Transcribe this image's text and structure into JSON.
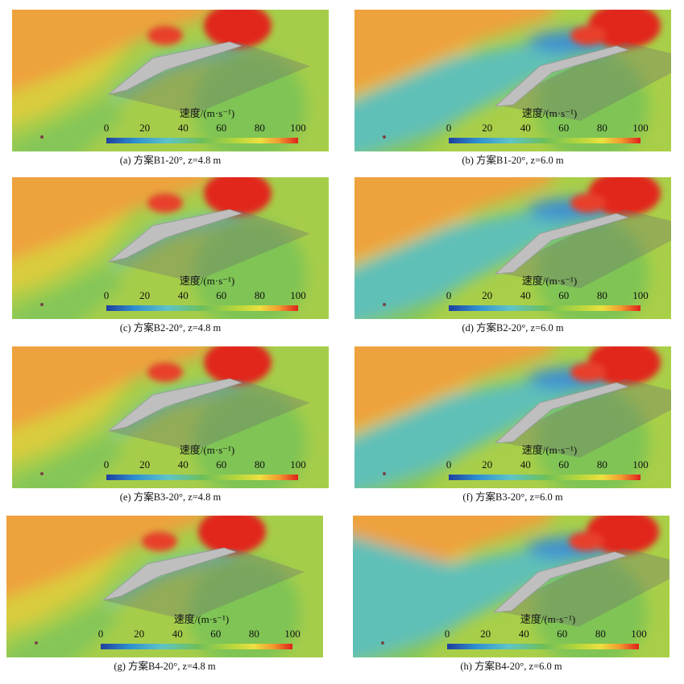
{
  "panels": [
    {
      "caption": "(a) 方案B1-20°, z=4.8 m",
      "legend_title": "速度/(m·s⁻¹)",
      "legend_ticks": [
        0,
        20,
        40,
        60,
        80,
        100
      ]
    },
    {
      "caption": "(b) 方案B1-20°, z=6.0 m",
      "legend_title": "速度/(m·s⁻¹)",
      "legend_ticks": [
        0,
        20,
        40,
        60,
        80,
        100
      ]
    },
    {
      "caption": "(c) 方案B2-20°, z=4.8 m",
      "legend_title": "速度/(m·s⁻¹)",
      "legend_ticks": [
        0,
        20,
        40,
        60,
        80,
        100
      ]
    },
    {
      "caption": "(d) 方案B2-20°, z=6.0 m",
      "legend_title": "速度/(m·s⁻¹)",
      "legend_ticks": [
        0,
        20,
        40,
        60,
        80,
        100
      ]
    },
    {
      "caption": "(e) 方案B3-20°, z=4.8 m",
      "legend_title": "速度/(m·s⁻¹)",
      "legend_ticks": [
        0,
        20,
        40,
        60,
        80,
        100
      ]
    },
    {
      "caption": "(f) 方案B3-20°, z=6.0 m",
      "legend_title": "速度/(m·s⁻¹)",
      "legend_ticks": [
        0,
        20,
        40,
        60,
        80,
        100
      ]
    },
    {
      "caption": "(g) 方案B4-20°, z=4.8 m",
      "legend_title": "速度/(m·s⁻¹)",
      "legend_ticks": [
        0,
        20,
        40,
        60,
        80,
        100
      ]
    },
    {
      "caption": "(h) 方案B4-20°, z=6.0 m",
      "legend_title": "速度/(m·s⁻¹)",
      "legend_ticks": [
        0,
        20,
        40,
        60,
        80,
        100
      ]
    }
  ]
}
